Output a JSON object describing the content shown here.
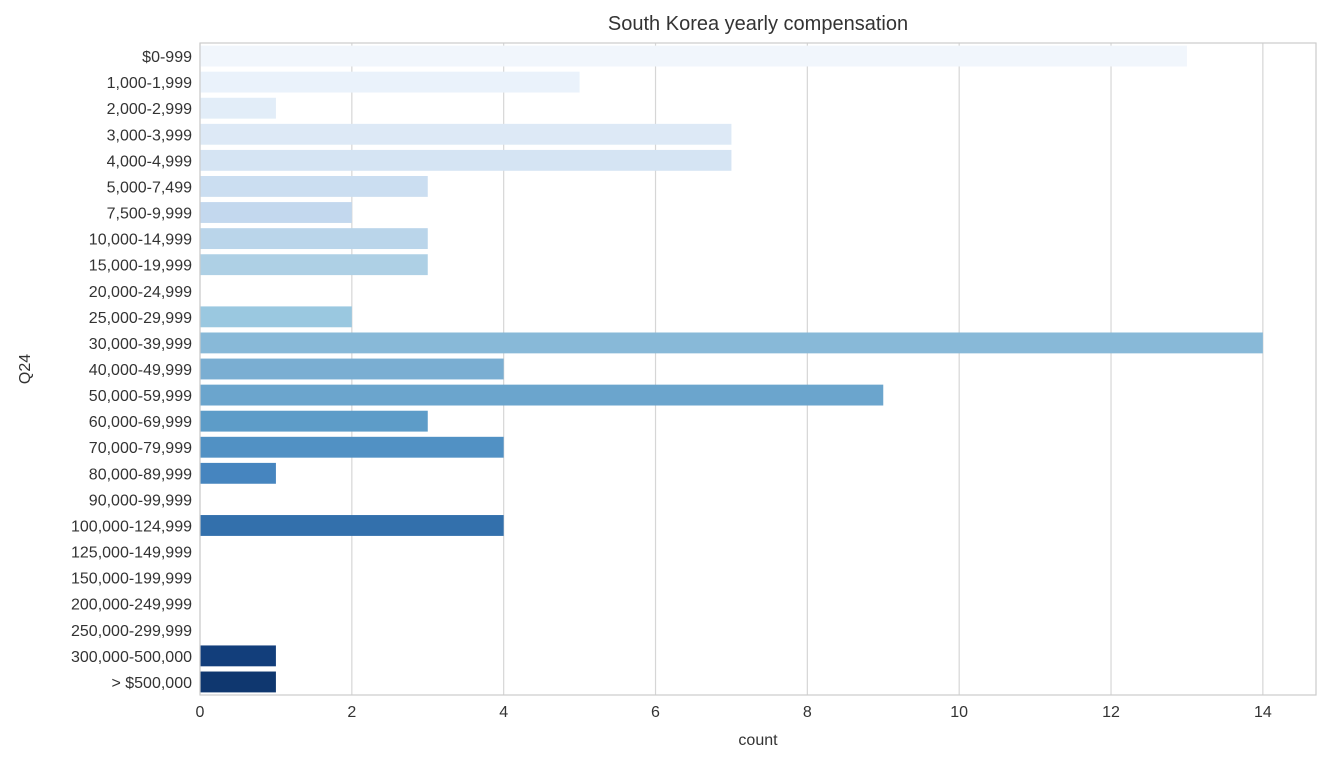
{
  "chart_data": {
    "type": "bar",
    "orientation": "horizontal",
    "title": "South Korea yearly compensation",
    "xlabel": "count",
    "ylabel": "Q24",
    "xlim": [
      0,
      14.7
    ],
    "xticks": [
      0,
      2,
      4,
      6,
      8,
      10,
      12,
      14
    ],
    "grid": true,
    "categories": [
      "$0-999",
      "1,000-1,999",
      "2,000-2,999",
      "3,000-3,999",
      "4,000-4,999",
      "5,000-7,499",
      "7,500-9,999",
      "10,000-14,999",
      "15,000-19,999",
      "20,000-24,999",
      "25,000-29,999",
      "30,000-39,999",
      "40,000-49,999",
      "50,000-59,999",
      "60,000-69,999",
      "70,000-79,999",
      "80,000-89,999",
      "90,000-99,999",
      "100,000-124,999",
      "125,000-149,999",
      "150,000-199,999",
      "200,000-249,999",
      "250,000-299,999",
      "300,000-500,000",
      "> $500,000"
    ],
    "values": [
      13,
      5,
      1,
      7,
      7,
      3,
      2,
      3,
      3,
      0,
      2,
      14,
      4,
      9,
      3,
      4,
      1,
      0,
      4,
      0,
      0,
      0,
      0,
      1,
      1
    ],
    "colors": [
      "#f1f6fc",
      "#eaf2fb",
      "#e2edf8",
      "#dde9f6",
      "#d5e4f3",
      "#cbdef1",
      "#c3d8ee",
      "#bad5ea",
      "#aed0e5",
      "#a5cbe3",
      "#9ac8e0",
      "#88b9d8",
      "#7aaed2",
      "#6ba5cd",
      "#5d9cc8",
      "#5191c4",
      "#4685bf",
      "#3a7ab8",
      "#3370ac",
      "#2b66a3",
      "#215c9a",
      "#1b5090",
      "#164785",
      "#123e7b",
      "#0f376f"
    ]
  }
}
